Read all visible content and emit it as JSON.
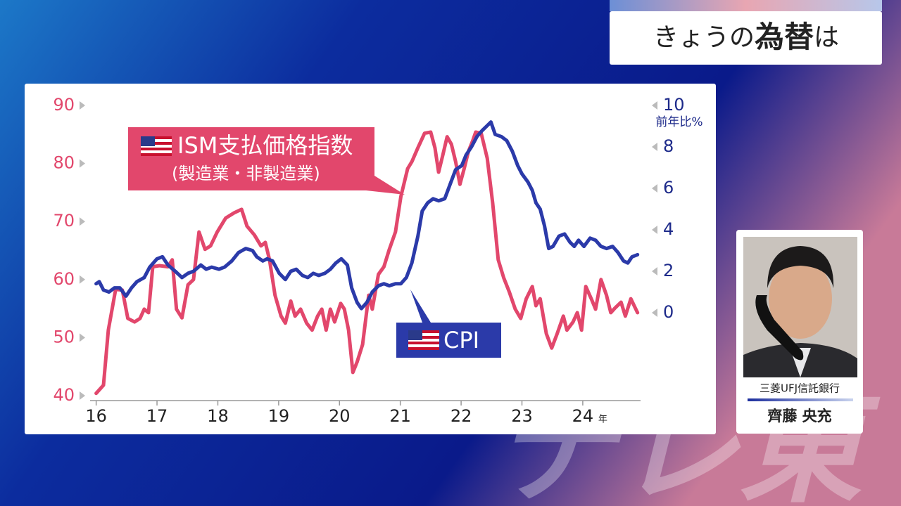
{
  "header": {
    "title": [
      "きょうの",
      "為替",
      "は"
    ]
  },
  "caller": {
    "company": "三菱UFJ信託銀行",
    "name": "齊藤 央充"
  },
  "watermark": "テレ東",
  "chart_data": {
    "type": "line",
    "xlabel": "年",
    "y2label": "前年比%",
    "annotations": [
      "(製造業・非製造業)"
    ],
    "xlim": [
      15.9,
      24.95
    ],
    "xticks": [
      16,
      17,
      18,
      19,
      20,
      21,
      22,
      23,
      24
    ],
    "ylim": [
      40,
      90
    ],
    "yticks": [
      40,
      50,
      60,
      70,
      80,
      90
    ],
    "y2lim": [
      -4,
      10
    ],
    "y2ticks": [
      0,
      2,
      4,
      6,
      8,
      10
    ],
    "series": [
      {
        "name": "ISM支払価格指数",
        "color": "#e2476c",
        "x": [
          16.0,
          16.12,
          16.2,
          16.32,
          16.43,
          16.52,
          16.63,
          16.72,
          16.79,
          16.86,
          16.93,
          17.04,
          17.18,
          17.25,
          17.32,
          17.41,
          17.51,
          17.6,
          17.69,
          17.79,
          17.88,
          17.99,
          18.13,
          18.27,
          18.39,
          18.48,
          18.6,
          18.71,
          18.78,
          18.85,
          18.94,
          19.04,
          19.11,
          19.2,
          19.27,
          19.36,
          19.46,
          19.55,
          19.64,
          19.71,
          19.78,
          19.85,
          19.92,
          20.02,
          20.08,
          20.15,
          20.22,
          20.29,
          20.38,
          20.48,
          20.54,
          20.64,
          20.73,
          20.82,
          20.92,
          21.01,
          21.12,
          21.19,
          21.29,
          21.4,
          21.5,
          21.57,
          21.63,
          21.7,
          21.77,
          21.84,
          21.91,
          21.98,
          22.05,
          22.12,
          22.19,
          22.24,
          22.33,
          22.43,
          22.52,
          22.61,
          22.7,
          22.79,
          22.89,
          22.98,
          23.07,
          23.17,
          23.23,
          23.3,
          23.4,
          23.49,
          23.58,
          23.68,
          23.74,
          23.84,
          23.91,
          23.98,
          24.05,
          24.14,
          24.21,
          24.3,
          24.39,
          24.46,
          24.53,
          24.63,
          24.7,
          24.79,
          24.9
        ],
        "values": [
          40.4,
          41.8,
          51.3,
          58.3,
          58.2,
          53.3,
          52.7,
          53.3,
          54.9,
          54.3,
          62.2,
          62.4,
          62.2,
          63.4,
          54.9,
          53.4,
          59.1,
          60.0,
          68.2,
          65.2,
          65.8,
          68.2,
          70.6,
          71.5,
          72.1,
          69.2,
          67.7,
          65.8,
          66.4,
          63.4,
          57.3,
          53.7,
          52.5,
          56.3,
          53.7,
          54.9,
          52.5,
          51.3,
          53.7,
          54.9,
          51.3,
          54.9,
          52.7,
          55.9,
          54.9,
          51.3,
          44.0,
          45.8,
          48.8,
          57.3,
          54.9,
          60.9,
          62.2,
          65.2,
          68.2,
          74.3,
          79.1,
          80.3,
          82.7,
          85.2,
          85.4,
          82.7,
          78.5,
          81.5,
          84.6,
          83.3,
          80.3,
          76.4,
          79.1,
          82.1,
          83.9,
          85.4,
          85.2,
          80.9,
          73.1,
          63.4,
          60.3,
          57.9,
          54.9,
          53.3,
          56.7,
          58.8,
          55.5,
          56.7,
          50.7,
          48.2,
          50.7,
          53.7,
          51.3,
          52.7,
          54.3,
          51.3,
          58.8,
          56.7,
          54.9,
          60.0,
          57.3,
          54.3,
          55.1,
          56.1,
          53.7,
          56.7,
          54.3
        ]
      },
      {
        "name": "CPI",
        "color": "#2b3aa9",
        "axis": "y2",
        "x": [
          16.0,
          16.05,
          16.12,
          16.21,
          16.3,
          16.39,
          16.49,
          16.58,
          16.67,
          16.79,
          16.88,
          17.0,
          17.09,
          17.18,
          17.3,
          17.41,
          17.51,
          17.6,
          17.72,
          17.81,
          17.9,
          18.02,
          18.11,
          18.23,
          18.34,
          18.46,
          18.57,
          18.64,
          18.74,
          18.81,
          18.9,
          19.01,
          19.11,
          19.2,
          19.29,
          19.39,
          19.48,
          19.57,
          19.66,
          19.76,
          19.85,
          19.94,
          20.03,
          20.13,
          20.2,
          20.29,
          20.36,
          20.45,
          20.54,
          20.64,
          20.73,
          20.82,
          20.92,
          21.01,
          21.1,
          21.19,
          21.29,
          21.36,
          21.45,
          21.54,
          21.63,
          21.73,
          21.82,
          21.91,
          22.01,
          22.08,
          22.17,
          22.26,
          22.35,
          22.42,
          22.49,
          22.56,
          22.66,
          22.75,
          22.84,
          22.93,
          23.0,
          23.1,
          23.17,
          23.23,
          23.3,
          23.37,
          23.44,
          23.51,
          23.61,
          23.7,
          23.79,
          23.86,
          23.93,
          24.02,
          24.12,
          24.21,
          24.3,
          24.39,
          24.49,
          24.58,
          24.67,
          24.74,
          24.81,
          24.9
        ],
        "values": [
          1.4,
          1.5,
          1.1,
          1.0,
          1.2,
          1.2,
          0.8,
          1.2,
          1.5,
          1.7,
          2.2,
          2.6,
          2.7,
          2.3,
          2.0,
          1.7,
          1.9,
          2.0,
          2.3,
          2.1,
          2.2,
          2.1,
          2.2,
          2.5,
          2.9,
          3.1,
          3.0,
          2.7,
          2.5,
          2.6,
          2.5,
          1.9,
          1.6,
          2.0,
          2.1,
          1.8,
          1.7,
          1.9,
          1.8,
          1.9,
          2.1,
          2.4,
          2.6,
          2.3,
          1.2,
          0.5,
          0.2,
          0.5,
          1.0,
          1.3,
          1.4,
          1.3,
          1.4,
          1.4,
          1.7,
          2.4,
          3.7,
          4.9,
          5.3,
          5.5,
          5.4,
          5.5,
          6.2,
          6.9,
          7.1,
          7.6,
          8.0,
          8.5,
          8.8,
          9.0,
          9.2,
          8.6,
          8.5,
          8.3,
          7.8,
          7.1,
          6.7,
          6.3,
          5.9,
          5.3,
          5.0,
          4.2,
          3.1,
          3.2,
          3.7,
          3.8,
          3.4,
          3.2,
          3.5,
          3.2,
          3.6,
          3.5,
          3.2,
          3.1,
          3.2,
          2.9,
          2.5,
          2.4,
          2.7,
          2.8
        ]
      }
    ]
  }
}
